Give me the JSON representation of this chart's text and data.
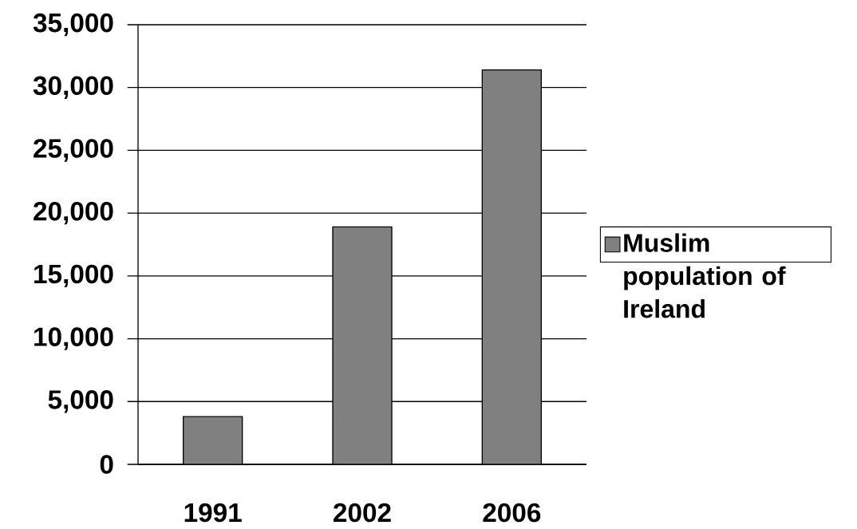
{
  "chart_data": {
    "type": "bar",
    "categories": [
      "1991",
      "2002",
      "2006"
    ],
    "series": [
      {
        "name": "Muslim population of Ireland",
        "color": "#808080",
        "values": [
          3800,
          18900,
          31400
        ]
      }
    ],
    "ylim": [
      0,
      35000
    ],
    "yticks": [
      0,
      {
        "value": 5000,
        "label": "5,000"
      },
      {
        "value": 10000,
        "label": "10,000"
      },
      {
        "value": 15000,
        "label": "15,000"
      },
      {
        "value": 20000,
        "label": "20,000"
      },
      {
        "value": 25000,
        "label": "25,000"
      },
      {
        "value": 30000,
        "label": "30,000"
      },
      {
        "value": 35000,
        "label": "35,000"
      }
    ],
    "grid": "y",
    "legend": "right"
  }
}
